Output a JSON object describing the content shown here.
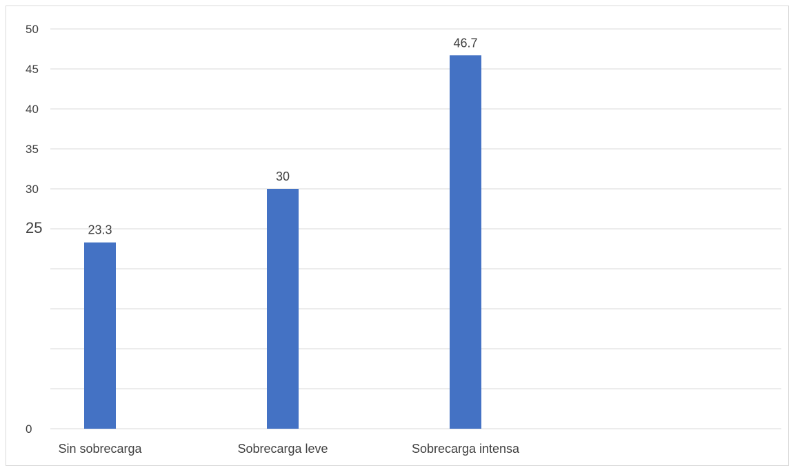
{
  "chart_data": {
    "type": "bar",
    "categories": [
      "Sin sobrecarga",
      "Sobrecarga leve",
      "Sobrecarga intensa"
    ],
    "values": [
      23.3,
      30,
      46.7
    ],
    "data_labels": [
      "23.3",
      "30",
      "46.7"
    ],
    "y_tick_labels": [
      "0",
      "",
      "",
      "",
      "",
      "25",
      "30",
      "35",
      "40",
      "45",
      "50"
    ],
    "ylim": [
      0,
      50
    ],
    "title": "",
    "xlabel": "",
    "ylabel": "",
    "grid": true,
    "bar_color": "#4472c4",
    "gridline_color": "#d9d9d9",
    "text_color": "#404040"
  }
}
